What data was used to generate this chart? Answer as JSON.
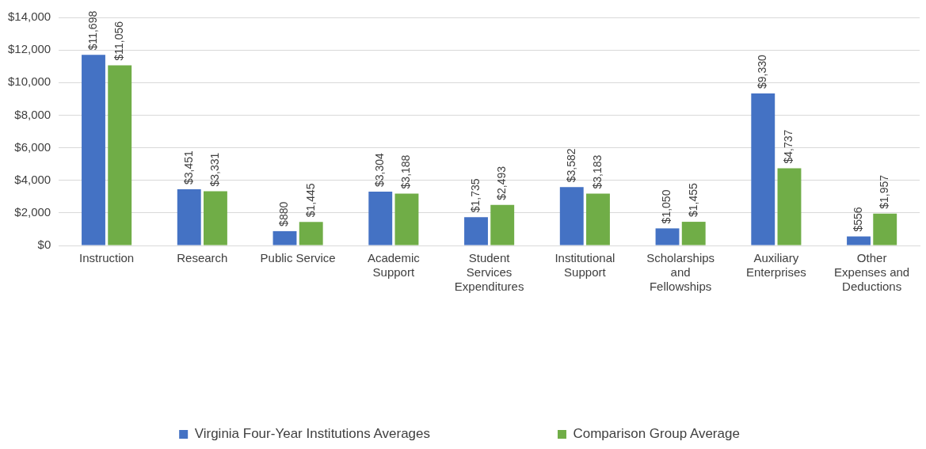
{
  "chart_data": {
    "type": "bar",
    "categories": [
      "Instruction",
      "Research",
      "Public Service",
      "Academic Support",
      "Student Services Expenditures",
      "Institutional Support",
      "Scholarships and Fellowships",
      "Auxiliary Enterprises",
      "Other Expenses and Deductions"
    ],
    "series": [
      {
        "name": "Virginia Four-Year Institutions Averages",
        "color": "#4472c4",
        "values": [
          11698,
          3451,
          880,
          3304,
          1735,
          3582,
          1050,
          9330,
          556
        ],
        "value_labels": [
          "$11,698",
          "$3,451",
          "$880",
          "$3,304",
          "$1,735",
          "$3,582",
          "$1,050",
          "$9,330",
          "$556"
        ]
      },
      {
        "name": "Comparison Group Average",
        "color": "#70ad47",
        "values": [
          11056,
          3331,
          1445,
          3188,
          2493,
          3183,
          1455,
          4737,
          1957
        ],
        "value_labels": [
          "$11,056",
          "$3,331",
          "$1,445",
          "$3,188",
          "$2,493",
          "$3,183",
          "$1,455",
          "$4,737",
          "$1,957"
        ]
      }
    ],
    "ylim": [
      0,
      14000
    ],
    "yticks": [
      {
        "value": 0,
        "label": "$0"
      },
      {
        "value": 2000,
        "label": "$2,000"
      },
      {
        "value": 4000,
        "label": "$4,000"
      },
      {
        "value": 6000,
        "label": "$6,000"
      },
      {
        "value": 8000,
        "label": "$8,000"
      },
      {
        "value": 10000,
        "label": "$10,000"
      },
      {
        "value": 12000,
        "label": "$12,000"
      },
      {
        "value": 14000,
        "label": "$14,000"
      }
    ],
    "grid": "y",
    "legend": "bottom"
  }
}
